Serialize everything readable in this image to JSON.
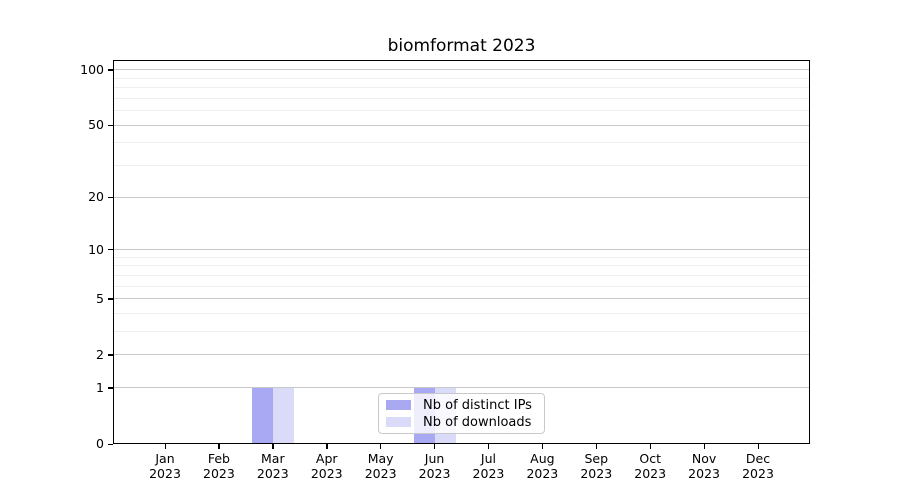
{
  "title": "biomformat 2023",
  "colors": {
    "distinct_ips": "#a8a9f2",
    "downloads": "#dadbf9",
    "grid_major": "#c9c9c9",
    "grid_minor": "#efefef",
    "axis": "#000000",
    "legend_border": "#c9c9c9",
    "text": "#000000"
  },
  "legend": {
    "items": [
      {
        "label": "Nb of distinct IPs",
        "color_key": "distinct_ips"
      },
      {
        "label": "Nb of downloads",
        "color_key": "downloads"
      }
    ]
  },
  "chart_data": {
    "type": "bar",
    "title": "biomformat 2023",
    "categories": [
      "Jan 2023",
      "Feb 2023",
      "Mar 2023",
      "Apr 2023",
      "May 2023",
      "Jun 2023",
      "Jul 2023",
      "Aug 2023",
      "Sep 2023",
      "Oct 2023",
      "Nov 2023",
      "Dec 2023"
    ],
    "series": [
      {
        "name": "Nb of distinct IPs",
        "color_key": "distinct_ips",
        "values": [
          0,
          0,
          1,
          0,
          0,
          1,
          0,
          0,
          0,
          0,
          0,
          0
        ]
      },
      {
        "name": "Nb of downloads",
        "color_key": "downloads",
        "values": [
          0,
          0,
          1,
          0,
          0,
          1,
          0,
          0,
          0,
          0,
          0,
          0
        ]
      }
    ],
    "y_ticks": [
      0,
      1,
      2,
      5,
      10,
      20,
      50,
      100
    ],
    "y_minor_ticks": [
      3,
      4,
      6,
      7,
      8,
      9,
      30,
      40,
      60,
      70,
      80,
      90
    ],
    "y_scale": "log1p",
    "ylim": [
      0,
      113
    ],
    "grid": "horizontal",
    "legend_position": "lower center"
  }
}
